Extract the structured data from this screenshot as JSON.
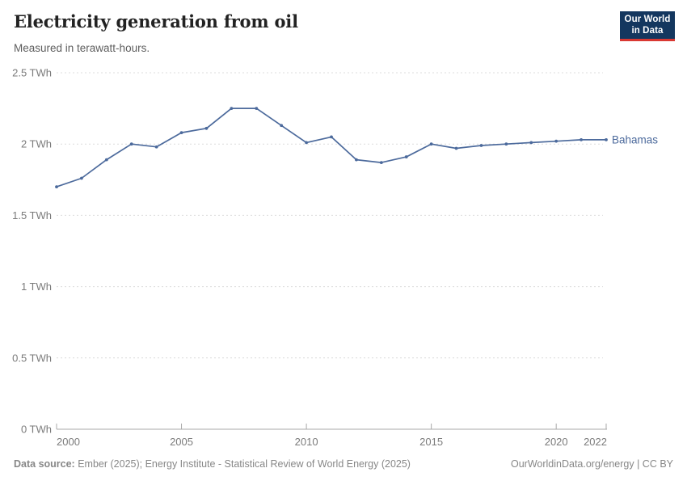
{
  "header": {
    "title": "Electricity generation from oil",
    "subtitle": "Measured in terawatt-hours.",
    "logo_line1": "Our World",
    "logo_line2": "in Data"
  },
  "colors": {
    "series_line": "#4C6A9C",
    "grid": "#dcdcdc",
    "axis": "#a8a8a8",
    "tick_text": "#7b7b7b",
    "logo_bg": "#14375f",
    "logo_accent": "#d93832",
    "title_text": "#222222",
    "subtitle_text": "#5e5e5e",
    "footer_text": "#878787"
  },
  "chart_data": {
    "type": "line",
    "title": "Electricity generation from oil",
    "subtitle": "Measured in terawatt-hours.",
    "y_unit": "TWh",
    "x": [
      2000,
      2001,
      2002,
      2003,
      2004,
      2005,
      2006,
      2007,
      2008,
      2009,
      2010,
      2011,
      2012,
      2013,
      2014,
      2015,
      2016,
      2017,
      2018,
      2019,
      2020,
      2021,
      2022
    ],
    "series": [
      {
        "name": "Bahamas",
        "color": "#4C6A9C",
        "values": [
          1.7,
          1.76,
          1.89,
          2.0,
          1.98,
          2.08,
          2.11,
          2.25,
          2.25,
          2.13,
          2.01,
          2.05,
          1.89,
          1.87,
          1.91,
          2.0,
          1.97,
          1.99,
          2.0,
          2.01,
          2.02,
          2.03,
          2.03
        ]
      }
    ],
    "xlim": [
      2000,
      2022
    ],
    "ylim": [
      0,
      2.5
    ],
    "xticks": [
      2000,
      2005,
      2010,
      2015,
      2020,
      2022
    ],
    "yticks": [
      0,
      0.5,
      1,
      1.5,
      2,
      2.5
    ],
    "grid": "horizontal-dashed",
    "legend_position": "end-of-line"
  },
  "footer": {
    "source_label": "Data source:",
    "source_text": "Ember (2025); Energy Institute - Statistical Review of World Energy (2025)",
    "right_text": "OurWorldinData.org/energy | CC BY"
  }
}
